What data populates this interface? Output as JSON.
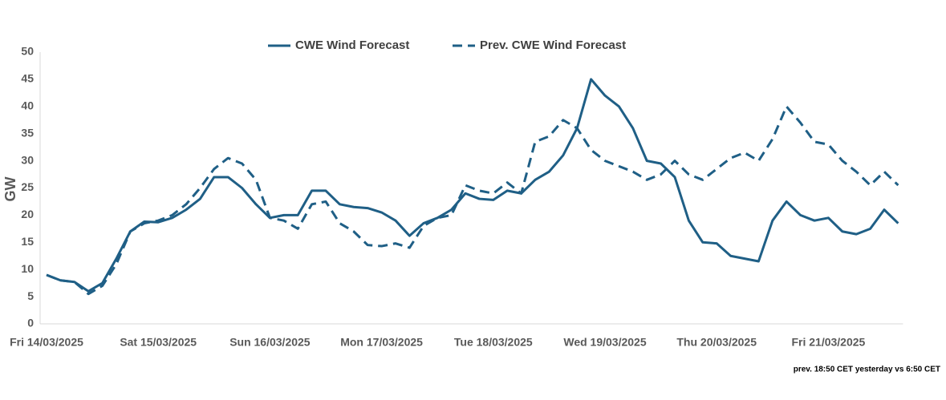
{
  "chart_data": {
    "type": "line",
    "y_label": "GW",
    "note": "prev. 18:50 CET yesterday vs  6:50 CET",
    "x": [
      "Fri 14/03/2025",
      null,
      null,
      null,
      null,
      null,
      null,
      null,
      "Sat 15/03/2025",
      null,
      null,
      null,
      null,
      null,
      null,
      null,
      "Sun 16/03/2025",
      null,
      null,
      null,
      null,
      null,
      null,
      null,
      "Mon 17/03/2025",
      null,
      null,
      null,
      null,
      null,
      null,
      null,
      "Tue 18/03/2025",
      null,
      null,
      null,
      null,
      null,
      null,
      null,
      "Wed 19/03/2025",
      null,
      null,
      null,
      null,
      null,
      null,
      null,
      "Thu 20/03/2025",
      null,
      null,
      null,
      null,
      null,
      null,
      null,
      "Fri 21/03/2025",
      null,
      null,
      null,
      null,
      null
    ],
    "series": [
      {
        "name": "CWE Wind Forecast",
        "color": "#1f5f86",
        "dash": false,
        "values": [
          9,
          8,
          7.7,
          6,
          7.5,
          12,
          17,
          18.8,
          18.7,
          19.5,
          21,
          23,
          27,
          27,
          25,
          22,
          19.5,
          20,
          20,
          24.5,
          24.5,
          22,
          21.5,
          21.3,
          20.5,
          19,
          16.2,
          18.5,
          19.5,
          21,
          24,
          23,
          22.8,
          24.5,
          24,
          26.5,
          28,
          31,
          36,
          45,
          42,
          40,
          36,
          30,
          29.5,
          27,
          19,
          15,
          14.8,
          12.5,
          12,
          11.5,
          19,
          22.5,
          20,
          19,
          19.5,
          17,
          16.5,
          17.5,
          21,
          18.5
        ]
      },
      {
        "name": "Prev. CWE Wind Forecast",
        "color": "#1f5f86",
        "dash": true,
        "values": [
          9,
          8,
          7.7,
          5.5,
          7,
          11,
          17,
          18.5,
          19,
          20,
          22,
          25,
          28.5,
          30.5,
          29.5,
          26.5,
          19.5,
          19,
          17.5,
          22,
          22.5,
          18.5,
          17,
          14.5,
          14.3,
          14.8,
          14,
          18,
          19.5,
          20,
          25.5,
          24.5,
          24,
          26,
          24,
          33.5,
          34.5,
          37.5,
          36,
          32,
          30,
          29,
          28,
          26.5,
          27.5,
          30,
          27.5,
          26.5,
          28.5,
          30.5,
          31.5,
          30,
          34,
          40,
          37,
          33.5,
          33,
          30,
          28,
          25.5,
          28,
          25.5
        ]
      }
    ],
    "ylim": [
      0,
      50
    ],
    "yticks": [
      0,
      5,
      10,
      15,
      20,
      25,
      30,
      35,
      40,
      45,
      50
    ],
    "grid": false,
    "legend": "top"
  }
}
